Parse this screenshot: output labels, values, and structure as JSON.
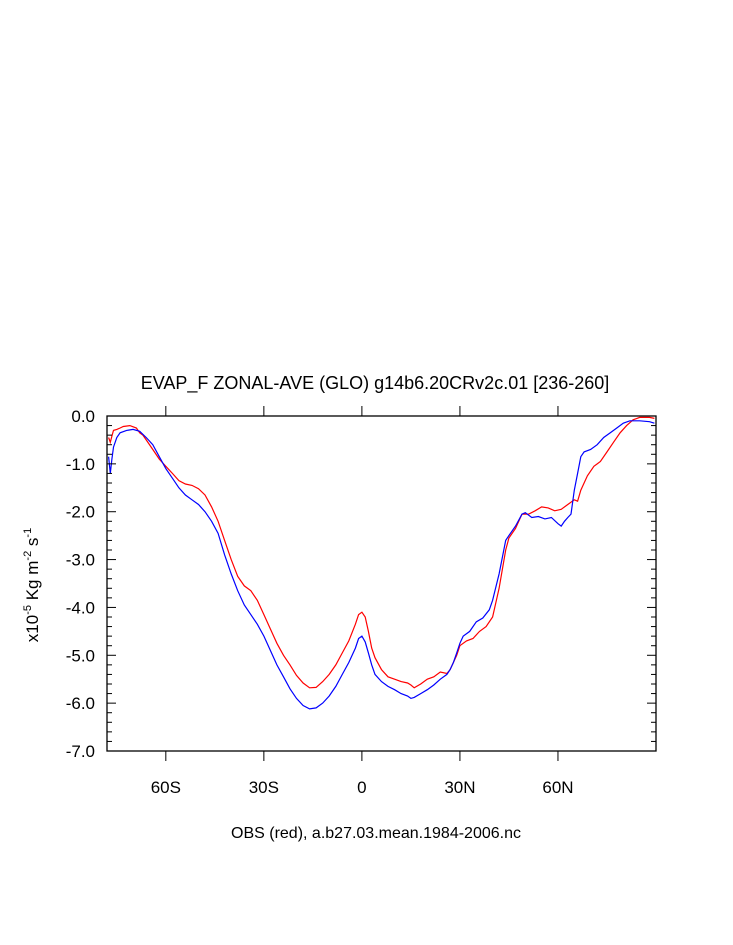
{
  "chart_data": {
    "type": "line",
    "title": "EVAP_F ZONAL-AVE (GLO) g14b6.20CRv2c.01 [236-260]",
    "ylabel": {
      "prefix": "x10",
      "exp1": "-5",
      "mid1": " Kg m",
      "exp2": "-2",
      "mid2": " s",
      "exp3": "-1"
    },
    "footnote": "OBS (red), a.b27.03.mean.1984-2006.nc",
    "xlim": [
      -78,
      90
    ],
    "ylim": [
      -7.0,
      0.0
    ],
    "x_ticks": [
      {
        "value": -60,
        "label": "60S"
      },
      {
        "value": -30,
        "label": "30S"
      },
      {
        "value": 0,
        "label": "0"
      },
      {
        "value": 30,
        "label": "30N"
      },
      {
        "value": 60,
        "label": "60N"
      }
    ],
    "y_ticks": [
      {
        "value": 0.0,
        "label": "0.0"
      },
      {
        "value": -1.0,
        "label": "-1.0"
      },
      {
        "value": -2.0,
        "label": "-2.0"
      },
      {
        "value": -3.0,
        "label": "-3.0"
      },
      {
        "value": -4.0,
        "label": "-4.0"
      },
      {
        "value": -5.0,
        "label": "-5.0"
      },
      {
        "value": -6.0,
        "label": "-6.0"
      },
      {
        "value": -7.0,
        "label": "-7.0"
      }
    ],
    "grid": false,
    "series": [
      {
        "color": "#ff0000",
        "points": [
          [
            -77.5,
            -0.45
          ],
          [
            -77,
            -0.55
          ],
          [
            -76.5,
            -0.42
          ],
          [
            -76,
            -0.3
          ],
          [
            -75,
            -0.28
          ],
          [
            -74,
            -0.25
          ],
          [
            -73,
            -0.22
          ],
          [
            -71,
            -0.2
          ],
          [
            -69,
            -0.25
          ],
          [
            -68,
            -0.35
          ],
          [
            -67,
            -0.4
          ],
          [
            -66,
            -0.5
          ],
          [
            -64,
            -0.7
          ],
          [
            -62,
            -0.9
          ],
          [
            -60,
            -1.05
          ],
          [
            -58,
            -1.2
          ],
          [
            -56,
            -1.35
          ],
          [
            -54,
            -1.42
          ],
          [
            -52,
            -1.45
          ],
          [
            -50,
            -1.52
          ],
          [
            -48,
            -1.65
          ],
          [
            -46,
            -1.9
          ],
          [
            -44,
            -2.2
          ],
          [
            -42,
            -2.6
          ],
          [
            -40,
            -3.0
          ],
          [
            -38,
            -3.35
          ],
          [
            -36,
            -3.55
          ],
          [
            -34,
            -3.65
          ],
          [
            -32,
            -3.85
          ],
          [
            -30,
            -4.15
          ],
          [
            -28,
            -4.45
          ],
          [
            -26,
            -4.75
          ],
          [
            -24,
            -5.0
          ],
          [
            -22,
            -5.2
          ],
          [
            -20,
            -5.42
          ],
          [
            -18,
            -5.58
          ],
          [
            -16,
            -5.68
          ],
          [
            -14,
            -5.67
          ],
          [
            -12,
            -5.55
          ],
          [
            -10,
            -5.4
          ],
          [
            -8,
            -5.2
          ],
          [
            -6,
            -4.95
          ],
          [
            -4,
            -4.7
          ],
          [
            -2,
            -4.35
          ],
          [
            -1,
            -4.15
          ],
          [
            0,
            -4.1
          ],
          [
            1,
            -4.2
          ],
          [
            2,
            -4.5
          ],
          [
            3,
            -4.85
          ],
          [
            4,
            -5.05
          ],
          [
            6,
            -5.3
          ],
          [
            8,
            -5.45
          ],
          [
            10,
            -5.5
          ],
          [
            12,
            -5.55
          ],
          [
            14,
            -5.58
          ],
          [
            15,
            -5.62
          ],
          [
            16,
            -5.68
          ],
          [
            18,
            -5.6
          ],
          [
            20,
            -5.5
          ],
          [
            22,
            -5.45
          ],
          [
            24,
            -5.35
          ],
          [
            26,
            -5.38
          ],
          [
            27,
            -5.3
          ],
          [
            28,
            -5.15
          ],
          [
            29,
            -5.0
          ],
          [
            30,
            -4.8
          ],
          [
            32,
            -4.7
          ],
          [
            34,
            -4.65
          ],
          [
            36,
            -4.5
          ],
          [
            38,
            -4.4
          ],
          [
            40,
            -4.2
          ],
          [
            42,
            -3.6
          ],
          [
            44,
            -2.8
          ],
          [
            45,
            -2.55
          ],
          [
            47,
            -2.35
          ],
          [
            49,
            -2.05
          ],
          [
            51,
            -2.05
          ],
          [
            53,
            -1.98
          ],
          [
            55,
            -1.9
          ],
          [
            57,
            -1.92
          ],
          [
            59,
            -1.98
          ],
          [
            61,
            -1.95
          ],
          [
            63,
            -1.85
          ],
          [
            65,
            -1.75
          ],
          [
            66,
            -1.78
          ],
          [
            67,
            -1.55
          ],
          [
            69,
            -1.25
          ],
          [
            71,
            -1.05
          ],
          [
            72,
            -1.0
          ],
          [
            73,
            -0.95
          ],
          [
            75,
            -0.75
          ],
          [
            77,
            -0.55
          ],
          [
            79,
            -0.35
          ],
          [
            81,
            -0.2
          ],
          [
            83,
            -0.08
          ],
          [
            85,
            -0.03
          ],
          [
            88,
            -0.03
          ],
          [
            89.5,
            -0.05
          ]
        ]
      },
      {
        "color": "#0000ff",
        "points": [
          [
            -77.5,
            -0.85
          ],
          [
            -77,
            -1.2
          ],
          [
            -76.5,
            -0.9
          ],
          [
            -76,
            -0.65
          ],
          [
            -75,
            -0.45
          ],
          [
            -74,
            -0.35
          ],
          [
            -72,
            -0.3
          ],
          [
            -70,
            -0.28
          ],
          [
            -68,
            -0.32
          ],
          [
            -66,
            -0.45
          ],
          [
            -64,
            -0.6
          ],
          [
            -62,
            -0.85
          ],
          [
            -60,
            -1.1
          ],
          [
            -58,
            -1.3
          ],
          [
            -56,
            -1.5
          ],
          [
            -54,
            -1.65
          ],
          [
            -52,
            -1.75
          ],
          [
            -50,
            -1.85
          ],
          [
            -48,
            -2.0
          ],
          [
            -46,
            -2.2
          ],
          [
            -44,
            -2.45
          ],
          [
            -42,
            -2.9
          ],
          [
            -40,
            -3.3
          ],
          [
            -38,
            -3.65
          ],
          [
            -36,
            -3.95
          ],
          [
            -34,
            -4.15
          ],
          [
            -32,
            -4.35
          ],
          [
            -30,
            -4.6
          ],
          [
            -28,
            -4.9
          ],
          [
            -26,
            -5.2
          ],
          [
            -24,
            -5.45
          ],
          [
            -22,
            -5.7
          ],
          [
            -20,
            -5.9
          ],
          [
            -18,
            -6.05
          ],
          [
            -16,
            -6.12
          ],
          [
            -14,
            -6.1
          ],
          [
            -12,
            -6.0
          ],
          [
            -10,
            -5.85
          ],
          [
            -8,
            -5.65
          ],
          [
            -6,
            -5.4
          ],
          [
            -4,
            -5.15
          ],
          [
            -2,
            -4.85
          ],
          [
            -1,
            -4.65
          ],
          [
            0,
            -4.6
          ],
          [
            1,
            -4.72
          ],
          [
            2,
            -4.95
          ],
          [
            3,
            -5.2
          ],
          [
            4,
            -5.4
          ],
          [
            6,
            -5.55
          ],
          [
            8,
            -5.65
          ],
          [
            10,
            -5.72
          ],
          [
            12,
            -5.8
          ],
          [
            14,
            -5.85
          ],
          [
            15,
            -5.9
          ],
          [
            16,
            -5.88
          ],
          [
            18,
            -5.8
          ],
          [
            20,
            -5.72
          ],
          [
            22,
            -5.62
          ],
          [
            24,
            -5.5
          ],
          [
            26,
            -5.4
          ],
          [
            27,
            -5.3
          ],
          [
            28,
            -5.15
          ],
          [
            29,
            -4.95
          ],
          [
            30,
            -4.75
          ],
          [
            31,
            -4.6
          ],
          [
            33,
            -4.5
          ],
          [
            35,
            -4.3
          ],
          [
            37,
            -4.22
          ],
          [
            39,
            -4.05
          ],
          [
            40,
            -3.85
          ],
          [
            42,
            -3.3
          ],
          [
            44,
            -2.6
          ],
          [
            45,
            -2.5
          ],
          [
            47,
            -2.3
          ],
          [
            49,
            -2.05
          ],
          [
            50,
            -2.02
          ],
          [
            52,
            -2.12
          ],
          [
            54,
            -2.1
          ],
          [
            56,
            -2.15
          ],
          [
            58,
            -2.12
          ],
          [
            60,
            -2.25
          ],
          [
            61,
            -2.3
          ],
          [
            62,
            -2.2
          ],
          [
            63,
            -2.12
          ],
          [
            64,
            -2.05
          ],
          [
            65,
            -1.55
          ],
          [
            66,
            -1.2
          ],
          [
            67,
            -0.85
          ],
          [
            68,
            -0.75
          ],
          [
            70,
            -0.7
          ],
          [
            72,
            -0.6
          ],
          [
            74,
            -0.45
          ],
          [
            76,
            -0.35
          ],
          [
            78,
            -0.25
          ],
          [
            80,
            -0.15
          ],
          [
            82,
            -0.1
          ],
          [
            85,
            -0.1
          ],
          [
            88,
            -0.12
          ],
          [
            89.5,
            -0.15
          ]
        ]
      }
    ]
  }
}
